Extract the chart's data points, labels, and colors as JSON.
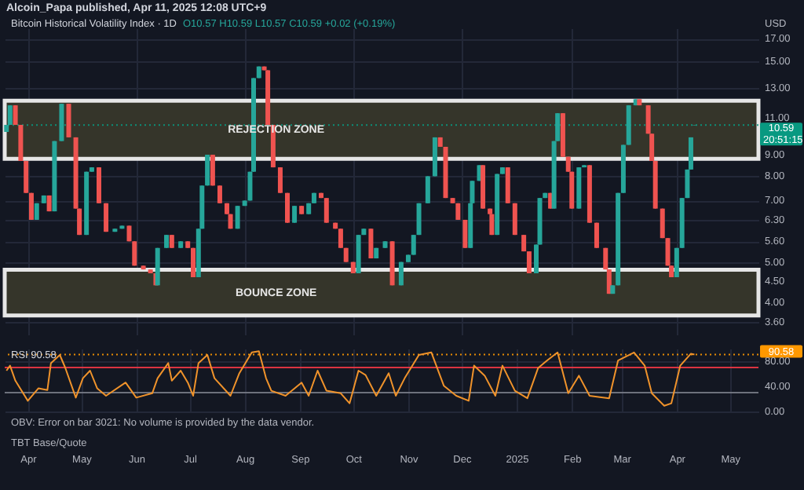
{
  "chart_data": [
    {
      "type": "candlestick",
      "title": "Bitcoin Historical Volatility Index · 1D",
      "subtitle": "O10.57 H10.59 L10.57 C10.59 +0.02 (+0.19%)",
      "log": true,
      "grid": true,
      "tick_labels": "y",
      "annotations": [
        "Alcoin_Papa published, Apr 11, 2025 12:08 UTC+9",
        "USD",
        "20:51:15"
      ],
      "xlim": [
        "2024-03-19",
        "2025-05-17"
      ],
      "xticks": [
        {
          "value": "2024-04-01",
          "label": null
        },
        {
          "value": "2024-05-01",
          "label": null
        },
        {
          "value": "2024-06-01",
          "label": null
        },
        {
          "value": "2024-07-01",
          "label": null
        },
        {
          "value": "2024-08-01",
          "label": null
        },
        {
          "value": "2024-09-01",
          "label": null
        },
        {
          "value": "2024-10-01",
          "label": null
        },
        {
          "value": "2024-11-01",
          "label": null
        },
        {
          "value": "2024-12-01",
          "label": null
        },
        {
          "value": "2025-01-01",
          "label": null
        },
        {
          "value": "2025-02-01",
          "label": null
        },
        {
          "value": "2025-03-01",
          "label": null
        },
        {
          "value": "2025-04-01",
          "label": null
        },
        {
          "value": "2025-05-01",
          "label": null
        }
      ],
      "ylim": [
        3.36,
        18
      ],
      "yticks": [
        {
          "value": 3.6,
          "label": "3.60"
        },
        {
          "value": 4,
          "label": "4.00"
        },
        {
          "value": 4.5,
          "label": "4.50"
        },
        {
          "value": 5,
          "label": "5.00"
        },
        {
          "value": 5.6,
          "label": "5.60"
        },
        {
          "value": 6.3,
          "label": "6.30"
        },
        {
          "value": 7,
          "label": "7.00"
        },
        {
          "value": 8,
          "label": "8.00"
        },
        {
          "value": 9,
          "label": "9.00"
        },
        {
          "value": 11,
          "label": "11.00"
        },
        {
          "value": 13,
          "label": "13.00"
        },
        {
          "value": 15,
          "label": "15.00"
        },
        {
          "value": 17,
          "label": "17.00"
        }
      ],
      "bands": [
        {
          "axis": "y",
          "from": 8.8,
          "to": 12.1,
          "label": "REJECTION ZONE",
          "color": "#35352a"
        },
        {
          "axis": "y",
          "from": 3.73,
          "to": 4.79,
          "label": "BOUNCE ZONE",
          "color": "#35352a"
        }
      ],
      "ref_lines": [
        {
          "axis": "y",
          "value": 10.59,
          "label": "10.59",
          "color": "#089981",
          "line_style": "dotted"
        }
      ],
      "x": [
        "2024-03-20",
        "2024-03-22",
        "2024-03-25",
        "2024-03-28",
        "2024-03-31",
        "2024-04-03",
        "2024-04-06",
        "2024-04-10",
        "2024-04-13",
        "2024-04-16",
        "2024-04-20",
        "2024-04-24",
        "2024-04-28",
        "2024-04-30",
        "2024-05-04",
        "2024-05-07",
        "2024-05-11",
        "2024-05-15",
        "2024-05-20",
        "2024-05-24",
        "2024-05-28",
        "2024-05-31",
        "2024-06-05",
        "2024-06-09",
        "2024-06-12",
        "2024-06-13",
        "2024-06-18",
        "2024-06-21",
        "2024-06-26",
        "2024-06-30",
        "2024-07-03",
        "2024-07-06",
        "2024-07-08",
        "2024-07-11",
        "2024-07-14",
        "2024-07-18",
        "2024-07-22",
        "2024-07-24",
        "2024-07-28",
        "2024-08-01",
        "2024-08-04",
        "2024-08-06",
        "2024-08-09",
        "2024-08-12",
        "2024-08-14",
        "2024-08-17",
        "2024-08-21",
        "2024-08-25",
        "2024-08-29",
        "2024-09-02",
        "2024-09-06",
        "2024-09-09",
        "2024-09-13",
        "2024-09-16",
        "2024-09-21",
        "2024-09-24",
        "2024-09-27",
        "2024-10-01",
        "2024-10-04",
        "2024-10-07",
        "2024-10-11",
        "2024-10-14",
        "2024-10-19",
        "2024-10-23",
        "2024-10-28",
        "2024-11-01",
        "2024-11-04",
        "2024-11-07",
        "2024-11-12",
        "2024-11-16",
        "2024-11-19",
        "2024-11-22",
        "2024-11-26",
        "2024-11-29",
        "2024-12-03",
        "2024-12-06",
        "2024-12-07",
        "2024-12-11",
        "2024-12-13",
        "2024-12-17",
        "2024-12-18",
        "2024-12-21",
        "2024-12-24",
        "2024-12-27",
        "2024-12-31",
        "2025-01-05",
        "2025-01-08",
        "2025-01-12",
        "2025-01-14",
        "2025-01-17",
        "2025-01-20",
        "2025-01-22",
        "2025-01-24",
        "2025-01-27",
        "2025-01-30",
        "2025-02-01",
        "2025-02-05",
        "2025-02-08",
        "2025-02-11",
        "2025-02-15",
        "2025-02-20",
        "2025-02-22",
        "2025-02-24",
        "2025-02-27",
        "2025-03-02",
        "2025-03-05",
        "2025-03-09",
        "2025-03-11",
        "2025-03-16",
        "2025-03-18",
        "2025-03-20",
        "2025-03-24",
        "2025-03-27",
        "2025-03-29",
        "2025-04-01",
        "2025-04-04",
        "2025-04-07",
        "2025-04-09",
        "2025-04-11"
      ],
      "ohlc": [
        [
          10.2,
          10.6,
          10.2,
          10.6
        ],
        [
          10.6,
          11.8,
          10.6,
          11.8
        ],
        [
          11.8,
          11.8,
          10.6,
          10.6
        ],
        [
          10.6,
          10.6,
          8.7,
          8.7
        ],
        [
          8.7,
          8.7,
          7.3,
          7.3
        ],
        [
          7.3,
          7.3,
          6.3,
          6.3
        ],
        [
          6.3,
          6.9,
          6.3,
          6.9
        ],
        [
          6.9,
          7.2,
          6.9,
          7.2
        ],
        [
          7.2,
          7.2,
          6.6,
          6.6
        ],
        [
          6.6,
          9.7,
          6.6,
          9.7
        ],
        [
          9.7,
          11.9,
          9.7,
          11.9
        ],
        [
          11.9,
          11.9,
          9.9,
          9.9
        ],
        [
          9.9,
          9.9,
          6.7,
          6.7
        ],
        [
          6.7,
          6.7,
          5.8,
          5.8
        ],
        [
          5.8,
          8.2,
          5.8,
          8.2
        ],
        [
          8.2,
          8.4,
          8.2,
          8.4
        ],
        [
          8.4,
          8.4,
          6.9,
          6.9
        ],
        [
          6.9,
          6.9,
          5.9,
          5.9
        ],
        [
          5.9,
          6.0,
          5.9,
          6.0
        ],
        [
          6.0,
          6.1,
          6.0,
          6.1
        ],
        [
          6.1,
          6.1,
          5.6,
          5.6
        ],
        [
          5.6,
          5.6,
          4.9,
          4.9
        ],
        [
          4.9,
          4.9,
          4.8,
          4.8
        ],
        [
          4.8,
          4.8,
          4.7,
          4.7
        ],
        [
          4.7,
          4.7,
          4.4,
          4.4
        ],
        [
          4.4,
          5.4,
          4.4,
          5.4
        ],
        [
          5.4,
          5.8,
          5.4,
          5.8
        ],
        [
          5.8,
          5.8,
          5.4,
          5.4
        ],
        [
          5.4,
          5.6,
          5.4,
          5.6
        ],
        [
          5.6,
          5.6,
          5.4,
          5.4
        ],
        [
          5.4,
          5.4,
          4.6,
          4.6
        ],
        [
          4.6,
          6.0,
          4.6,
          6.0
        ],
        [
          6.0,
          7.6,
          6.0,
          7.6
        ],
        [
          7.6,
          9.0,
          7.6,
          9.0
        ],
        [
          9.0,
          9.0,
          7.6,
          7.6
        ],
        [
          7.6,
          7.6,
          6.9,
          6.9
        ],
        [
          6.9,
          6.9,
          6.5,
          6.5
        ],
        [
          6.5,
          6.5,
          6.0,
          6.0
        ],
        [
          6.0,
          6.8,
          6.0,
          6.8
        ],
        [
          6.8,
          7.0,
          6.8,
          7.0
        ],
        [
          7.0,
          8.2,
          7.0,
          8.2
        ],
        [
          8.2,
          13.7,
          8.2,
          13.7
        ],
        [
          13.7,
          14.6,
          13.7,
          14.6
        ],
        [
          14.6,
          14.6,
          14.3,
          14.3
        ],
        [
          14.3,
          14.3,
          10.6,
          10.6
        ],
        [
          10.6,
          10.6,
          8.4,
          8.4
        ],
        [
          8.4,
          8.4,
          7.3,
          7.3
        ],
        [
          7.3,
          7.3,
          6.2,
          6.2
        ],
        [
          6.2,
          6.8,
          6.2,
          6.8
        ],
        [
          6.8,
          6.8,
          6.5,
          6.5
        ],
        [
          6.5,
          6.9,
          6.5,
          6.9
        ],
        [
          6.9,
          7.3,
          6.9,
          7.3
        ],
        [
          7.3,
          7.3,
          7.1,
          7.1
        ],
        [
          7.1,
          7.1,
          6.2,
          6.2
        ],
        [
          6.2,
          6.2,
          6.0,
          6.0
        ],
        [
          6.0,
          6.0,
          5.4,
          5.4
        ],
        [
          5.4,
          5.4,
          5.0,
          5.0
        ],
        [
          5.0,
          5.0,
          4.7,
          4.7
        ],
        [
          4.7,
          5.8,
          4.7,
          5.8
        ],
        [
          5.8,
          6.0,
          5.8,
          6.0
        ],
        [
          6.0,
          6.0,
          5.1,
          5.1
        ],
        [
          5.1,
          5.4,
          5.1,
          5.4
        ],
        [
          5.4,
          5.6,
          5.4,
          5.6
        ],
        [
          5.6,
          5.6,
          4.4,
          4.4
        ],
        [
          4.4,
          5.0,
          4.4,
          5.0
        ],
        [
          5.0,
          5.2,
          5.0,
          5.2
        ],
        [
          5.2,
          5.8,
          5.2,
          5.8
        ],
        [
          5.8,
          6.9,
          5.8,
          6.9
        ],
        [
          6.9,
          8.0,
          6.9,
          8.0
        ],
        [
          8.0,
          9.9,
          8.0,
          9.9
        ],
        [
          9.9,
          9.9,
          9.4,
          9.4
        ],
        [
          9.4,
          9.4,
          7.1,
          7.1
        ],
        [
          7.1,
          7.1,
          6.9,
          6.9
        ],
        [
          6.9,
          6.9,
          6.3,
          6.3
        ],
        [
          6.3,
          6.3,
          5.4,
          5.4
        ],
        [
          5.4,
          6.9,
          5.4,
          6.9
        ],
        [
          6.9,
          7.8,
          6.9,
          7.8
        ],
        [
          7.8,
          8.5,
          7.8,
          8.5
        ],
        [
          8.5,
          8.5,
          6.7,
          6.7
        ],
        [
          6.7,
          6.7,
          6.5,
          6.5
        ],
        [
          6.5,
          6.5,
          5.8,
          5.8
        ],
        [
          5.8,
          8.1,
          5.8,
          8.1
        ],
        [
          8.1,
          8.4,
          8.1,
          8.4
        ],
        [
          8.4,
          8.4,
          6.9,
          6.9
        ],
        [
          6.9,
          6.9,
          5.8,
          5.8
        ],
        [
          5.8,
          5.8,
          5.3,
          5.3
        ],
        [
          5.3,
          5.3,
          4.7,
          4.7
        ],
        [
          4.7,
          5.5,
          4.7,
          5.5
        ],
        [
          5.5,
          7.1,
          5.5,
          7.1
        ],
        [
          7.1,
          7.3,
          7.1,
          7.3
        ],
        [
          7.3,
          7.3,
          6.7,
          6.7
        ],
        [
          6.7,
          9.7,
          6.7,
          9.7
        ],
        [
          9.7,
          11.3,
          9.7,
          11.3
        ],
        [
          11.3,
          11.3,
          8.9,
          8.9
        ],
        [
          8.9,
          8.9,
          8.2,
          8.2
        ],
        [
          8.2,
          8.2,
          6.7,
          6.7
        ],
        [
          6.7,
          8.4,
          6.7,
          8.4
        ],
        [
          8.4,
          8.5,
          8.4,
          8.5
        ],
        [
          8.5,
          8.5,
          6.2,
          6.2
        ],
        [
          6.2,
          6.2,
          5.4,
          5.4
        ],
        [
          5.4,
          5.4,
          4.8,
          4.8
        ],
        [
          4.8,
          4.8,
          4.2,
          4.2
        ],
        [
          4.2,
          4.4,
          4.2,
          4.4
        ],
        [
          4.4,
          7.3,
          4.4,
          7.3
        ],
        [
          7.3,
          9.5,
          7.3,
          9.5
        ],
        [
          9.5,
          11.8,
          9.5,
          11.8
        ],
        [
          11.8,
          12.2,
          11.8,
          12.2
        ],
        [
          12.2,
          12.2,
          11.8,
          11.8
        ],
        [
          11.8,
          11.8,
          10.1,
          10.1
        ],
        [
          10.1,
          10.1,
          8.7,
          8.7
        ],
        [
          8.7,
          8.7,
          6.7,
          6.7
        ],
        [
          6.7,
          6.7,
          5.7,
          5.7
        ],
        [
          5.7,
          5.7,
          4.9,
          4.9
        ],
        [
          4.9,
          4.9,
          4.6,
          4.6
        ],
        [
          4.6,
          5.4,
          4.6,
          5.4
        ],
        [
          5.4,
          7.1,
          5.4,
          7.1
        ],
        [
          7.1,
          8.3,
          7.1,
          8.3
        ],
        [
          8.3,
          9.9,
          8.3,
          9.9
        ],
        [
          10.57,
          10.59,
          10.57,
          10.59
        ]
      ]
    },
    {
      "type": "line",
      "title": "RSI 90.58",
      "grid": true,
      "annotations": [
        "OBV: Error on bar 3021: No volume is provided by the data vendor.",
        "TBT Base/Quote"
      ],
      "xlim": [
        "2024-03-19",
        "2025-05-17"
      ],
      "xticks": [
        {
          "value": "2024-04-01",
          "label": "Apr"
        },
        {
          "value": "2024-05-01",
          "label": "May"
        },
        {
          "value": "2024-06-01",
          "label": "Jun"
        },
        {
          "value": "2024-07-01",
          "label": "Jul"
        },
        {
          "value": "2024-08-01",
          "label": "Aug"
        },
        {
          "value": "2024-09-01",
          "label": "Sep"
        },
        {
          "value": "2024-10-01",
          "label": "Oct"
        },
        {
          "value": "2024-11-01",
          "label": "Nov"
        },
        {
          "value": "2024-12-01",
          "label": "Dec"
        },
        {
          "value": "2025-01-01",
          "label": "2025"
        },
        {
          "value": "2025-02-01",
          "label": "Feb"
        },
        {
          "value": "2025-03-01",
          "label": "Mar"
        },
        {
          "value": "2025-04-01",
          "label": "Apr"
        },
        {
          "value": "2025-05-01",
          "label": "May"
        }
      ],
      "ylim": [
        0,
        100
      ],
      "yticks": [
        {
          "value": 0,
          "label": "0.00"
        },
        {
          "value": 40,
          "label": "40.00"
        },
        {
          "value": 80,
          "label": "80.00"
        }
      ],
      "ref_lines": [
        {
          "axis": "y",
          "value": 70,
          "color": "#f23645",
          "line_style": "solid"
        },
        {
          "axis": "y",
          "value": 30,
          "color": "#787b86",
          "line_style": "solid"
        },
        {
          "axis": "y",
          "value": 90.58,
          "label": "90.58",
          "color": "#ff9800",
          "line_style": "dotted"
        }
      ],
      "x": [
        "2024-03-20",
        "2024-03-22",
        "2024-03-25",
        "2024-04-01",
        "2024-04-07",
        "2024-04-12",
        "2024-04-14",
        "2024-04-19",
        "2024-04-22",
        "2024-04-28",
        "2024-05-02",
        "2024-05-06",
        "2024-05-10",
        "2024-05-15",
        "2024-05-26",
        "2024-06-01",
        "2024-06-10",
        "2024-06-13",
        "2024-06-19",
        "2024-06-21",
        "2024-06-26",
        "2024-06-30",
        "2024-07-03",
        "2024-07-06",
        "2024-07-11",
        "2024-07-15",
        "2024-07-24",
        "2024-07-29",
        "2024-08-05",
        "2024-08-09",
        "2024-08-13",
        "2024-08-16",
        "2024-08-24",
        "2024-09-02",
        "2024-09-06",
        "2024-09-11",
        "2024-09-16",
        "2024-09-24",
        "2024-09-29",
        "2024-10-04",
        "2024-10-08",
        "2024-10-14",
        "2024-10-21",
        "2024-10-25",
        "2024-10-30",
        "2024-11-07",
        "2024-11-14",
        "2024-11-21",
        "2024-11-28",
        "2024-12-05",
        "2024-12-08",
        "2024-12-14",
        "2024-12-20",
        "2024-12-24",
        "2024-12-31",
        "2025-01-07",
        "2025-01-13",
        "2025-01-18",
        "2025-01-24",
        "2025-01-30",
        "2025-02-05",
        "2025-02-11",
        "2025-02-22",
        "2025-02-27",
        "2025-03-08",
        "2025-03-14",
        "2025-03-18",
        "2025-03-25",
        "2025-03-29",
        "2025-04-03",
        "2025-04-09",
        "2025-04-11"
      ],
      "series": [
        {
          "color": "#f0932b",
          "values": [
            65,
            73,
            49,
            17,
            37,
            34,
            77,
            90,
            70,
            22,
            53,
            65,
            37,
            25,
            46,
            22,
            29,
            53,
            77,
            49,
            65,
            46,
            25,
            77,
            90,
            53,
            25,
            61,
            94,
            96,
            53,
            33,
            25,
            46,
            25,
            65,
            33,
            29,
            13,
            65,
            58,
            25,
            61,
            25,
            53,
            90,
            94,
            41,
            25,
            17,
            73,
            57,
            25,
            73,
            33,
            21,
            69,
            81,
            94,
            29,
            57,
            25,
            21,
            81,
            94,
            73,
            29,
            9,
            13,
            73,
            92,
            90.58
          ]
        }
      ]
    }
  ]
}
